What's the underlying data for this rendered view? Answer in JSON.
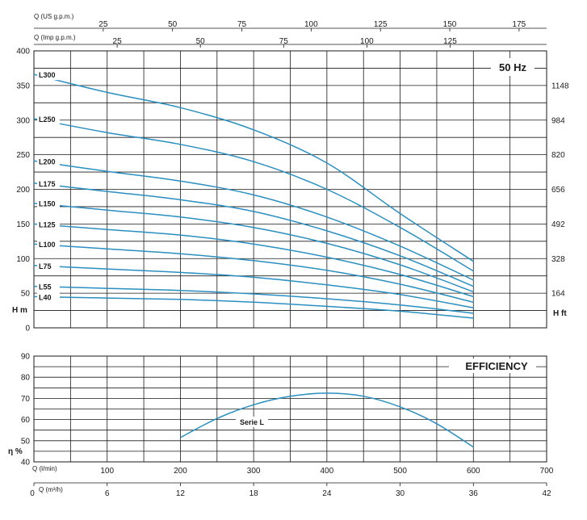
{
  "chart_data": [
    {
      "type": "line",
      "panel": "head",
      "title": "50 Hz",
      "x_axis_bottom": {
        "label": "Q (l/min)",
        "range": [
          0,
          700
        ]
      },
      "x_axis_top_1": {
        "label": "Q (US g.p.m.)",
        "ticks": [
          25,
          50,
          75,
          100,
          125,
          150,
          175
        ]
      },
      "x_axis_top_2": {
        "label": "Q (Imp g.p.m.)",
        "ticks": [
          25,
          50,
          75,
          100,
          125
        ]
      },
      "y_axis_left": {
        "label": "H m",
        "range": [
          0,
          400
        ],
        "ticks": [
          0,
          50,
          100,
          150,
          200,
          250,
          300,
          350,
          400
        ]
      },
      "y_axis_right": {
        "label": "H ft",
        "ticks": [
          164,
          328,
          492,
          656,
          820,
          984,
          1148
        ]
      },
      "x": [
        0,
        100,
        200,
        300,
        400,
        500,
        600
      ],
      "series": [
        {
          "name": "L300",
          "values": [
            366,
            340,
            318,
            286,
            238,
            165,
            96
          ]
        },
        {
          "name": "L250",
          "values": [
            302,
            282,
            265,
            240,
            200,
            145,
            82
          ]
        },
        {
          "name": "L200",
          "values": [
            241,
            226,
            212,
            192,
            160,
            118,
            69
          ]
        },
        {
          "name": "L175",
          "values": [
            209,
            197,
            185,
            168,
            140,
            104,
            60
          ]
        },
        {
          "name": "L150",
          "values": [
            180,
            170,
            160,
            145,
            122,
            91,
            52
          ]
        },
        {
          "name": "L125",
          "values": [
            150,
            142,
            134,
            121,
            102,
            77,
            45
          ]
        },
        {
          "name": "L100",
          "values": [
            121,
            114,
            107,
            97,
            83,
            63,
            37
          ]
        },
        {
          "name": "L75",
          "values": [
            90,
            85,
            80,
            73,
            62,
            48,
            29
          ]
        },
        {
          "name": "L55",
          "values": [
            60,
            57,
            54,
            49,
            42,
            33,
            21
          ]
        },
        {
          "name": "L40",
          "values": [
            45,
            43,
            41,
            37,
            31,
            24,
            14
          ]
        }
      ]
    },
    {
      "type": "line",
      "panel": "efficiency",
      "title": "EFFICIENCY",
      "y_axis_left": {
        "label": "η %",
        "range": [
          40,
          90
        ],
        "ticks": [
          40,
          50,
          60,
          70,
          80,
          90
        ]
      },
      "x_axis_bottom": {
        "label": "Q (l/min)",
        "ticks": [
          0,
          100,
          200,
          300,
          400,
          500,
          600,
          700
        ]
      },
      "x_axis_bottom_2": {
        "label": "Q (m³/h)",
        "ticks": [
          0,
          6,
          12,
          18,
          24,
          30,
          36,
          42
        ]
      },
      "series": [
        {
          "name": "Serie L",
          "x": [
            200,
            250,
            300,
            350,
            400,
            450,
            500,
            550,
            600
          ],
          "values": [
            51.5,
            60.5,
            67,
            71,
            72.5,
            71,
            66,
            58,
            47
          ]
        }
      ]
    }
  ]
}
